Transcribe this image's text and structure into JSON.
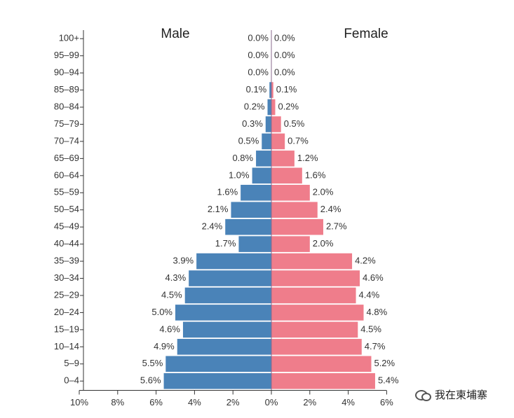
{
  "chart_data": {
    "type": "bar",
    "orientation": "horizontal-pyramid",
    "categories": [
      "100+",
      "95–99",
      "90–94",
      "85–89",
      "80–84",
      "75–79",
      "70–74",
      "65–69",
      "60–64",
      "55–59",
      "50–54",
      "45–49",
      "40–44",
      "35–39",
      "30–34",
      "25–29",
      "20–24",
      "15–19",
      "10–14",
      "5–9",
      "0–4"
    ],
    "series": [
      {
        "name": "Male",
        "color": "#4a83b8",
        "values": [
          0.0,
          0.0,
          0.0,
          0.1,
          0.2,
          0.3,
          0.5,
          0.8,
          1.0,
          1.6,
          2.1,
          2.4,
          1.7,
          3.9,
          4.3,
          4.5,
          5.0,
          4.6,
          4.9,
          5.5,
          5.6
        ],
        "labels": [
          "0.0%",
          "0.0%",
          "0.0%",
          "0.1%",
          "0.2%",
          "0.3%",
          "0.5%",
          "0.8%",
          "1.0%",
          "1.6%",
          "2.1%",
          "2.4%",
          "1.7%",
          "3.9%",
          "4.3%",
          "4.5%",
          "5.0%",
          "4.6%",
          "4.9%",
          "5.5%",
          "5.6%"
        ]
      },
      {
        "name": "Female",
        "color": "#ef7d8b",
        "values": [
          0.0,
          0.0,
          0.0,
          0.1,
          0.2,
          0.5,
          0.7,
          1.2,
          1.6,
          2.0,
          2.4,
          2.7,
          2.0,
          4.2,
          4.6,
          4.4,
          4.8,
          4.5,
          4.7,
          5.2,
          5.4
        ],
        "labels": [
          "0.0%",
          "0.0%",
          "0.0%",
          "0.1%",
          "0.2%",
          "0.5%",
          "0.7%",
          "1.2%",
          "1.6%",
          "2.0%",
          "2.4%",
          "2.7%",
          "2.0%",
          "4.2%",
          "4.6%",
          "4.4%",
          "4.8%",
          "4.5%",
          "4.7%",
          "5.2%",
          "5.4%"
        ]
      }
    ],
    "x_ticks": [
      "10%",
      "8%",
      "6%",
      "4%",
      "2%",
      "0%",
      "2%",
      "4%",
      "6%"
    ],
    "xlim": [
      -10,
      6
    ],
    "grid": false
  },
  "watermark": {
    "text": "我在柬埔寨",
    "icon": "wechat-icon"
  }
}
